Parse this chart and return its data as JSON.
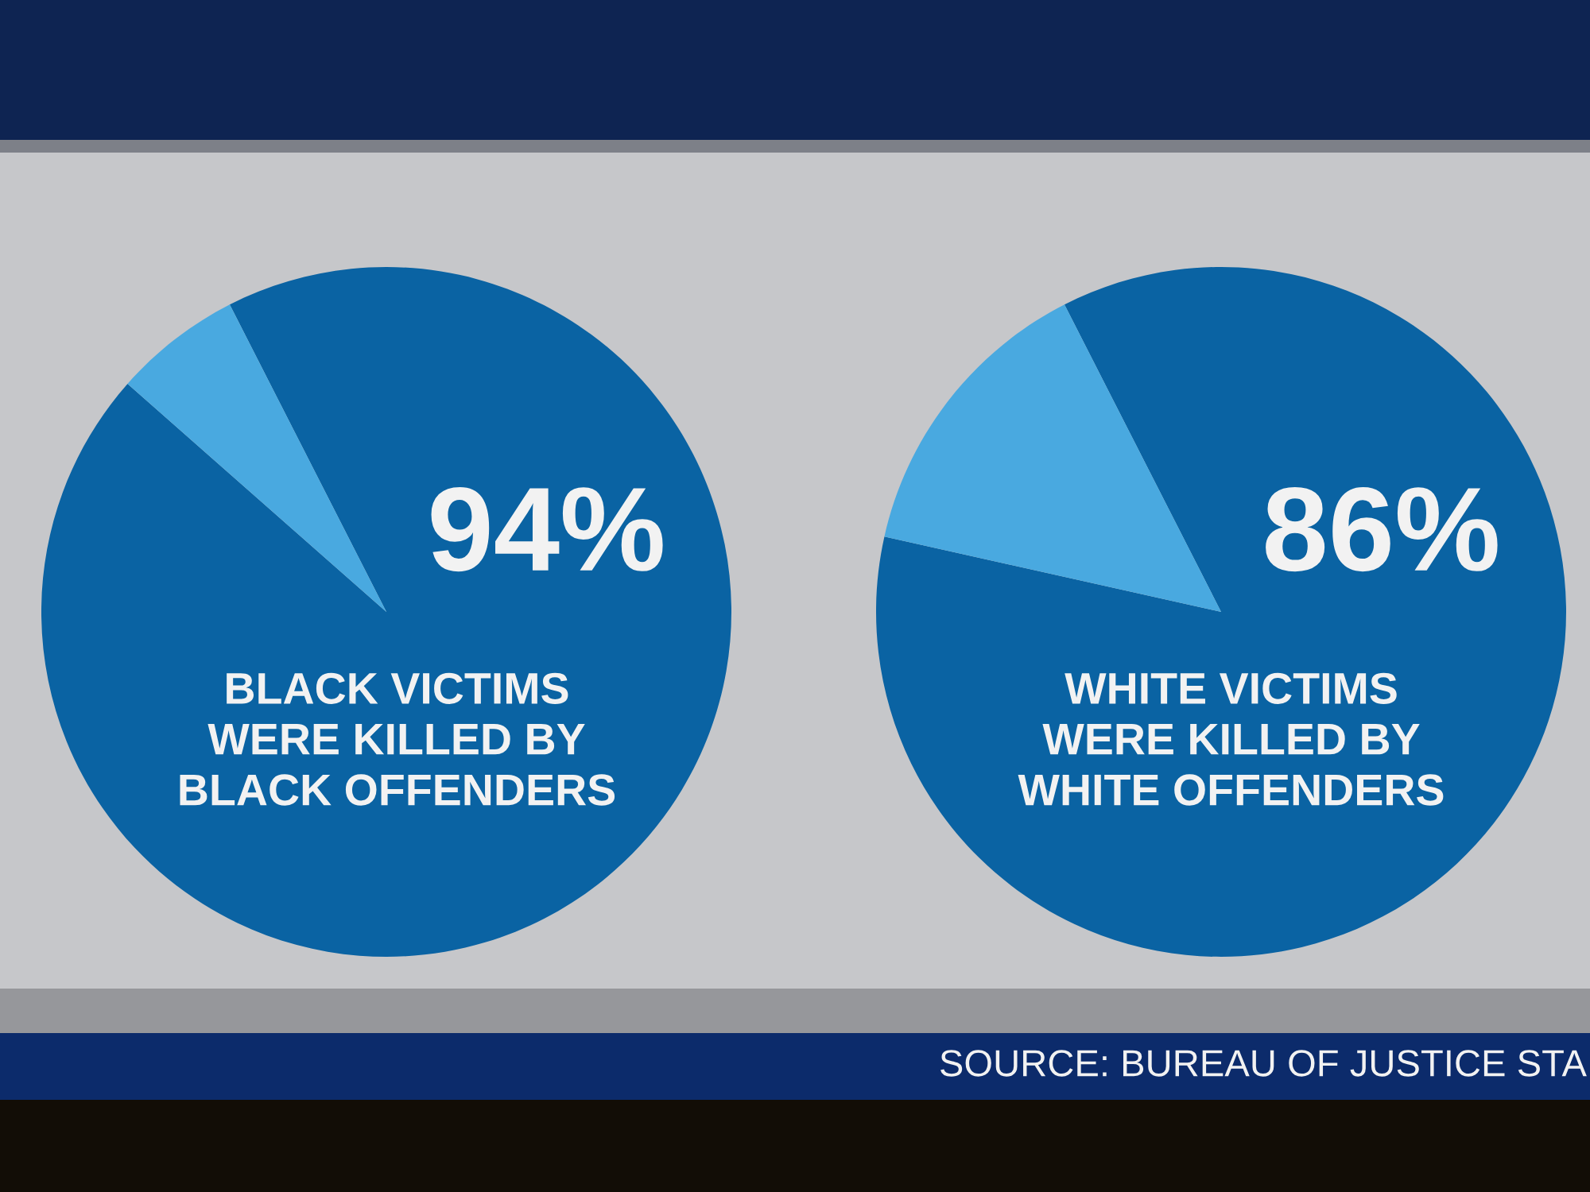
{
  "chart_data": [
    {
      "type": "pie",
      "title": "BLACK VICTIMS\nWERE KILLED BY\nBLACK OFFENDERS",
      "categories": [
        null,
        null
      ],
      "values": [
        94,
        6
      ],
      "colors": [
        "#0a63a3",
        "#49a9e0"
      ],
      "value_labels": [
        "94%",
        null
      ]
    },
    {
      "type": "pie",
      "title": "WHITE VICTIMS\nWERE KILLED BY\nWHITE OFFENDERS",
      "categories": [
        null,
        null
      ],
      "values": [
        86,
        14
      ],
      "colors": [
        "#0a63a3",
        "#49a9e0"
      ],
      "value_labels": [
        "86%",
        null
      ],
      "annotations": [
        "SOURCE: BUREAU OF JUSTICE STA"
      ]
    }
  ]
}
